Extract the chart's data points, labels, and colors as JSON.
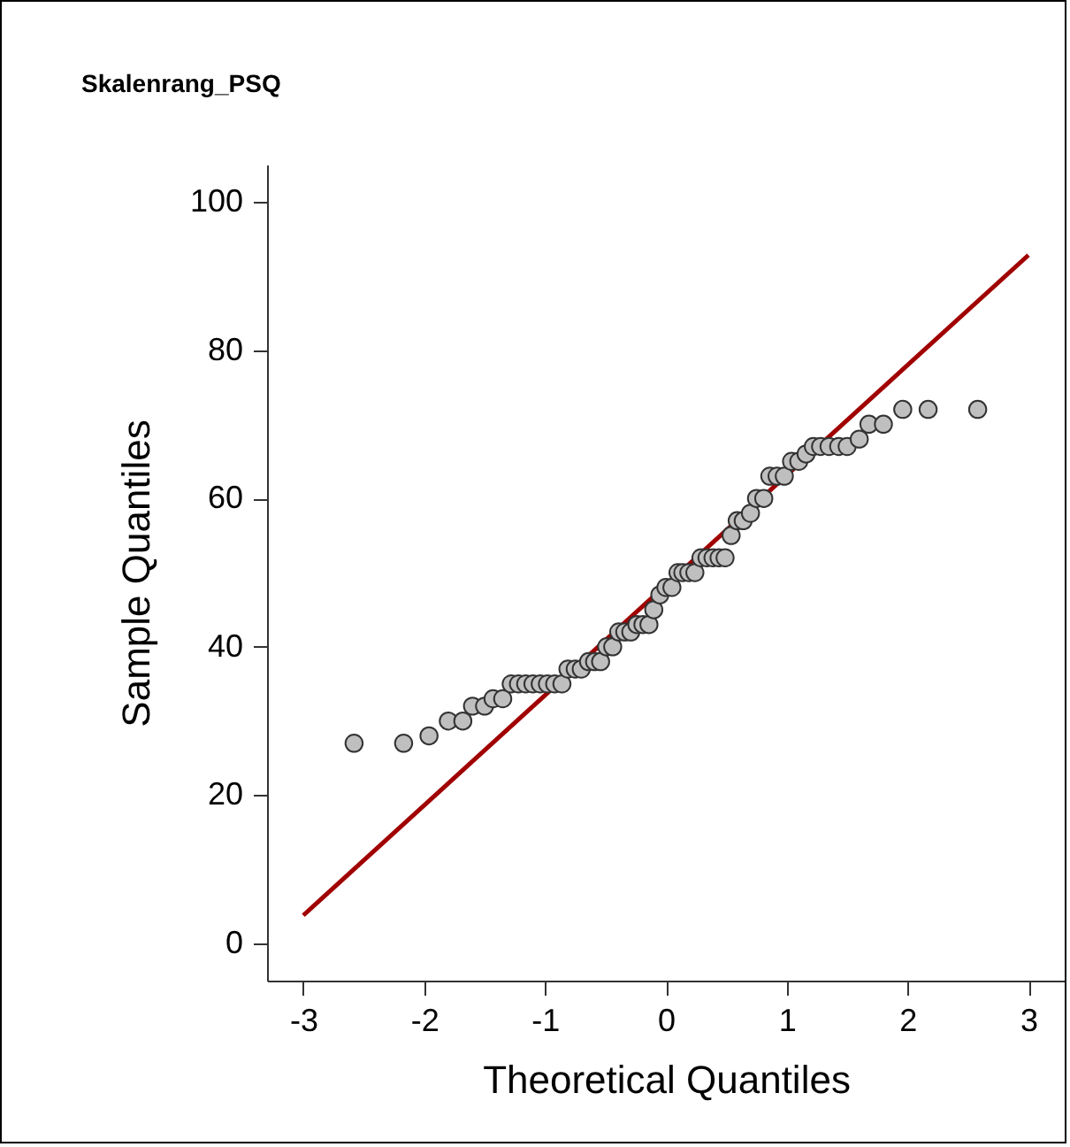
{
  "chart_data": {
    "type": "scatter",
    "title": "Skalenrang_PSQ",
    "xlabel": "Theoretical Quantiles",
    "ylabel": "Sample Quantiles",
    "xlim": [
      -3.3,
      3.3
    ],
    "ylim": [
      -5,
      105
    ],
    "xticks": [
      -3,
      -2,
      -1,
      0,
      1,
      2,
      3
    ],
    "yticks": [
      0,
      20,
      40,
      60,
      80,
      100
    ],
    "grid": false,
    "marker": "circle",
    "series": [
      {
        "color": "#bfbfbf",
        "x": [
          -2.58,
          -2.17,
          -1.96,
          -1.8,
          -1.68,
          -1.6,
          -1.5,
          -1.43,
          -1.35,
          -1.28,
          -1.22,
          -1.16,
          -1.1,
          -1.04,
          -0.98,
          -0.92,
          -0.86,
          -0.81,
          -0.75,
          -0.7,
          -0.64,
          -0.59,
          -0.54,
          -0.49,
          -0.44,
          -0.39,
          -0.34,
          -0.29,
          -0.24,
          -0.19,
          -0.14,
          -0.1,
          -0.05,
          0,
          0.05,
          0.1,
          0.14,
          0.19,
          0.24,
          0.29,
          0.34,
          0.39,
          0.44,
          0.49,
          0.54,
          0.59,
          0.64,
          0.7,
          0.75,
          0.81,
          0.86,
          0.92,
          0.98,
          1.04,
          1.1,
          1.16,
          1.22,
          1.28,
          1.35,
          1.43,
          1.5,
          1.6,
          1.68,
          1.8,
          1.96,
          2.17,
          2.58
        ],
        "values": [
          27,
          27,
          28,
          30,
          30,
          32,
          32,
          33,
          33,
          35,
          35,
          35,
          35,
          35,
          35,
          35,
          35,
          37,
          37,
          37,
          38,
          38,
          38,
          40,
          40,
          42,
          42,
          42,
          43,
          43,
          43,
          45,
          47,
          48,
          48,
          50,
          50,
          50,
          50,
          52,
          52,
          52,
          52,
          52,
          55,
          57,
          57,
          58,
          60,
          60,
          63,
          63,
          63,
          65,
          65,
          66,
          67,
          67,
          67,
          67,
          67,
          68,
          70,
          70,
          72,
          72,
          72
        ]
      },
      {
        "type": "line",
        "marker": "none",
        "color": "#a00000",
        "x": [
          -3,
          3
        ],
        "values": [
          3.8,
          92.8
        ]
      }
    ]
  }
}
